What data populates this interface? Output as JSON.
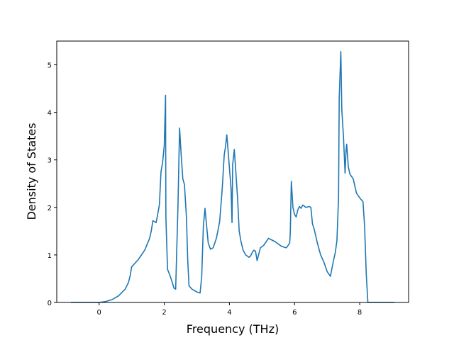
{
  "chart_data": {
    "type": "line",
    "title": "",
    "xlabel": "Frequency (THz)",
    "ylabel": "Density of States",
    "xlim": [
      -1.3,
      9.5
    ],
    "ylim": [
      0,
      5.5
    ],
    "xticks": [
      0,
      2,
      4,
      6,
      8
    ],
    "yticks": [
      0,
      1,
      2,
      3,
      4,
      5
    ],
    "grid": false,
    "legend": "none",
    "series": [
      {
        "color": "#1f77b4",
        "x": [
          -0.85,
          0,
          0.2,
          0.4,
          0.6,
          0.8,
          0.9,
          0.95,
          1.0,
          1.2,
          1.4,
          1.55,
          1.6,
          1.65,
          1.75,
          1.85,
          1.9,
          1.95,
          2.0,
          2.04,
          2.05,
          2.1,
          2.2,
          2.3,
          2.35,
          2.42,
          2.47,
          2.52,
          2.57,
          2.62,
          2.68,
          2.72,
          2.76,
          2.85,
          3.0,
          3.1,
          3.15,
          3.2,
          3.25,
          3.35,
          3.42,
          3.5,
          3.6,
          3.7,
          3.78,
          3.84,
          3.88,
          3.92,
          4.05,
          4.08,
          4.1,
          4.15,
          4.25,
          4.3,
          4.35,
          4.42,
          4.5,
          4.6,
          4.65,
          4.7,
          4.75,
          4.8,
          4.85,
          4.95,
          5.05,
          5.2,
          5.4,
          5.6,
          5.75,
          5.85,
          5.87,
          5.9,
          5.95,
          6.0,
          6.05,
          6.1,
          6.15,
          6.2,
          6.25,
          6.35,
          6.45,
          6.5,
          6.55,
          6.6,
          6.7,
          6.8,
          6.9,
          7.0,
          7.1,
          7.2,
          7.25,
          7.3,
          7.35,
          7.37,
          7.42,
          7.45,
          7.5,
          7.55,
          7.58,
          7.6,
          7.65,
          7.7,
          7.8,
          7.9,
          8.0,
          8.1,
          8.15,
          8.2,
          8.25,
          8.27,
          8.3,
          9.05
        ],
        "y": [
          0,
          0,
          0.02,
          0.06,
          0.14,
          0.28,
          0.42,
          0.55,
          0.75,
          0.9,
          1.1,
          1.35,
          1.5,
          1.72,
          1.68,
          2.05,
          2.75,
          2.95,
          3.3,
          4.36,
          1.8,
          0.7,
          0.52,
          0.3,
          0.28,
          2.0,
          3.67,
          3.1,
          2.6,
          2.48,
          1.8,
          0.9,
          0.35,
          0.28,
          0.22,
          0.2,
          0.55,
          1.6,
          1.98,
          1.25,
          1.12,
          1.15,
          1.35,
          1.7,
          2.4,
          3.1,
          3.28,
          3.53,
          2.4,
          1.68,
          2.9,
          3.22,
          2.2,
          1.5,
          1.3,
          1.1,
          1.0,
          0.95,
          0.98,
          1.05,
          1.1,
          1.08,
          0.88,
          1.15,
          1.2,
          1.35,
          1.28,
          1.18,
          1.15,
          1.25,
          1.5,
          2.55,
          2.0,
          1.85,
          1.8,
          1.95,
          2.02,
          1.98,
          2.05,
          2.0,
          2.02,
          2.0,
          1.65,
          1.55,
          1.25,
          1.0,
          0.85,
          0.65,
          0.55,
          0.9,
          1.05,
          1.3,
          2.2,
          4.3,
          5.28,
          4.05,
          3.5,
          2.72,
          3.2,
          3.33,
          2.85,
          2.7,
          2.6,
          2.3,
          2.2,
          2.12,
          1.6,
          0.6,
          0.0,
          0.0,
          0.0,
          0.0
        ]
      }
    ]
  }
}
